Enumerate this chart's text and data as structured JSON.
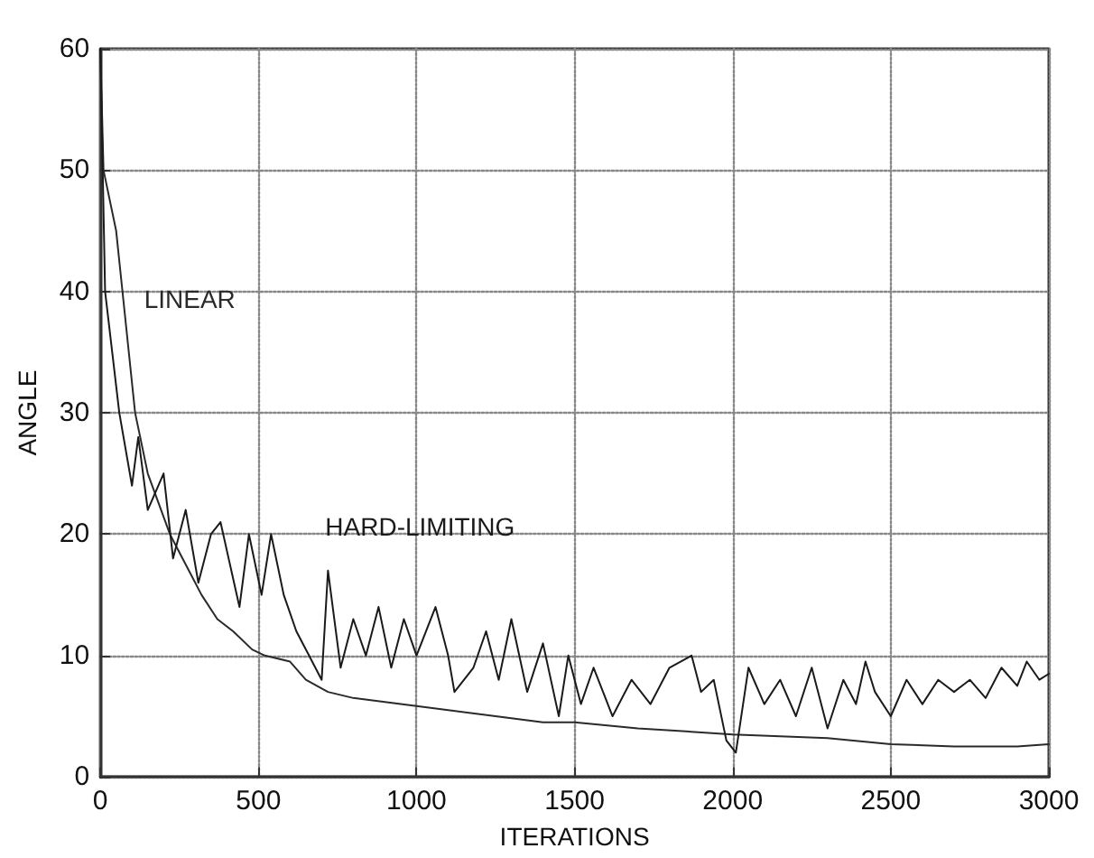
{
  "chart_data": {
    "type": "line",
    "xlabel": "ITERATIONS",
    "ylabel": "ANGLE",
    "xlim": [
      0,
      3000
    ],
    "xticks": [
      0,
      500,
      1000,
      1500,
      2000,
      2500,
      3000
    ],
    "ylim": [
      0,
      60
    ],
    "yticks": [
      0,
      10,
      20,
      30,
      40,
      50,
      60
    ],
    "grid": true,
    "marker": "none",
    "line_style": "solid",
    "series": [
      {
        "name": "LINEAR",
        "color": "#2a2a2a",
        "x": [
          0,
          10,
          50,
          70,
          110,
          150,
          220,
          280,
          320,
          370,
          420,
          480,
          520,
          600,
          650,
          720,
          800,
          950,
          1100,
          1250,
          1400,
          1500,
          1700,
          2000,
          2300,
          2500,
          2700,
          2900,
          3000
        ],
        "values": [
          60,
          50,
          45,
          40,
          30,
          25,
          20,
          17,
          15,
          13,
          12,
          10.5,
          10,
          9.5,
          8,
          7,
          6.5,
          6,
          5.5,
          5,
          4.5,
          4.5,
          4,
          3.5,
          3.2,
          2.7,
          2.5,
          2.5,
          2.7
        ]
      },
      {
        "name": "HARD-LIMITING",
        "color": "#1a1a1a",
        "x": [
          0,
          15,
          60,
          100,
          120,
          150,
          200,
          230,
          270,
          310,
          350,
          380,
          440,
          470,
          510,
          540,
          580,
          620,
          660,
          700,
          720,
          760,
          800,
          840,
          880,
          920,
          960,
          1000,
          1060,
          1100,
          1120,
          1180,
          1220,
          1260,
          1300,
          1350,
          1400,
          1450,
          1480,
          1520,
          1560,
          1620,
          1680,
          1740,
          1800,
          1870,
          1900,
          1940,
          1980,
          2010,
          2050,
          2100,
          2150,
          2200,
          2250,
          2300,
          2350,
          2390,
          2420,
          2450,
          2500,
          2550,
          2600,
          2650,
          2700,
          2750,
          2800,
          2850,
          2900,
          2930,
          2970,
          3000
        ],
        "values": [
          60,
          40,
          30,
          24,
          28,
          22,
          25,
          18,
          22,
          16,
          20,
          21,
          14,
          20,
          15,
          20,
          15,
          12,
          10,
          8,
          17,
          9,
          13,
          10,
          14,
          9,
          13,
          10,
          14,
          10,
          7,
          9,
          12,
          8,
          13,
          7,
          11,
          5,
          10,
          6,
          9,
          5,
          8,
          6,
          9,
          10,
          7,
          8,
          3,
          2,
          9,
          6,
          8,
          5,
          9,
          4,
          8,
          6,
          9.5,
          7,
          5,
          8,
          6,
          8,
          7,
          8,
          6.5,
          9,
          7.5,
          9.5,
          8,
          8.5
        ]
      }
    ]
  }
}
